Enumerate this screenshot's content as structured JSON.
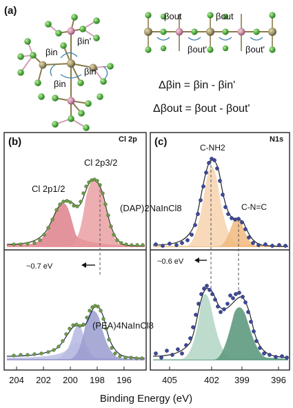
{
  "panel_a": {
    "label": "(a)",
    "left_labels": [
      "βin",
      "βin",
      "βin'",
      "βin'"
    ],
    "right_labels": [
      "βout",
      "βout",
      "βout'",
      "βout'"
    ],
    "equation_in": "Δβin = βin - βin'",
    "equation_out": "Δβout = βout - βout'"
  },
  "panel_b": {
    "label": "(b)",
    "core_level": "Cl 2p",
    "peak_high": "Cl 2p1/2",
    "peak_low": "Cl 2p3/2",
    "shift": "~0.7 eV",
    "compound_top": "(DAP)2NaInCl8",
    "compound_bottom": "(PEA)4NaInCl8",
    "x_ticks": [
      "204",
      "202",
      "200",
      "198",
      "196"
    ]
  },
  "panel_c": {
    "label": "(c)",
    "core_level": "N1s",
    "peak_a": "C-NH2",
    "peak_b": "C-N=C",
    "shift": "~0.6 eV",
    "x_ticks": [
      "405",
      "402",
      "399",
      "396"
    ]
  },
  "x_label": "Binding Energy (eV)",
  "colors": {
    "cl_top_main": "#e89a9e",
    "cl_top_minor": "#d86f79",
    "cl_bottom_main": "#9a9cd0",
    "cl_bottom_minor": "#b9bce2",
    "n_top_main": "#f7d6b4",
    "n_top_minor": "#f1b97e",
    "n_bottom_main": "#b6d8c8",
    "n_bottom_minor": "#5e9a7e",
    "cl_data": "#6f9a4a",
    "n_data": "#3d4a9a",
    "atom_cl": "#5cb24a",
    "atom_in": "#a0966a",
    "atom_na": "#c98aa8"
  }
}
